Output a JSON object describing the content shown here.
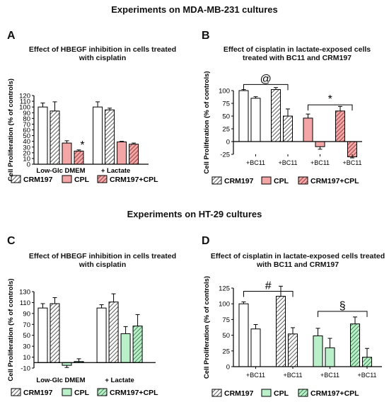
{
  "sections": {
    "top_title": "Experiments on MDA-MB-231 cultures",
    "bottom_title": "Experiments on HT-29 cultures"
  },
  "colors": {
    "white_bar": "#ffffff",
    "hatched_bar": "#ffffff",
    "pink": "#f4a6a6",
    "green": "#b9f0c9",
    "line": "#000000"
  },
  "chart_data": [
    {
      "panel": "A",
      "type": "bar",
      "title": "Effect of HBEGF inhibition in cells treated with cisplatin",
      "ylabel": "Cell Proliferation (% of controls)",
      "ylim": [
        0,
        120
      ],
      "yticks": [
        0,
        10,
        20,
        30,
        40,
        50,
        60,
        70,
        80,
        90,
        100,
        110,
        120
      ],
      "groups": [
        "Low-Glc DMEM",
        "+ Lactate"
      ],
      "series": [
        {
          "name": "",
          "fill": "white",
          "values": [
            100,
            100
          ],
          "err": [
            7,
            9
          ]
        },
        {
          "name": "CRM197",
          "fill": "hatch",
          "values": [
            93,
            95
          ],
          "err": [
            16,
            3
          ]
        },
        {
          "name": "CPL",
          "fill": "pink",
          "values": [
            37,
            39
          ],
          "err": [
            4,
            1
          ]
        },
        {
          "name": "CRM197+CPL",
          "fill": "pinkhatch",
          "values": [
            23,
            35
          ],
          "err": [
            2,
            2
          ]
        }
      ],
      "annotations": [
        {
          "symbol": "*",
          "group": 0,
          "series": 3
        }
      ]
    },
    {
      "panel": "B",
      "type": "bar",
      "title": "Effect of cisplatin in lactate-exposed cells treated with BC11 and CRM197",
      "ylabel": "Cell Proliferation (% of controls)",
      "ylim": [
        -25,
        100
      ],
      "yticks": [
        -25,
        0,
        25,
        50,
        75,
        100
      ],
      "x_labels": [
        "+BC11",
        "+BC11",
        "+BC11",
        "+BC11"
      ],
      "bars": [
        {
          "fill": "white",
          "value": 100,
          "err": 2
        },
        {
          "fill": "white",
          "value": 85,
          "err": 3
        },
        {
          "fill": "hatch",
          "value": 102,
          "err": 4
        },
        {
          "fill": "hatch",
          "value": 50,
          "err": 14
        },
        {
          "fill": "pink",
          "value": 46,
          "err": 8
        },
        {
          "fill": "pink",
          "value": -10,
          "err": 5
        },
        {
          "fill": "pinkhatch",
          "value": 60,
          "err": 9
        },
        {
          "fill": "pinkhatch",
          "value": -30,
          "err": 2
        }
      ],
      "brackets": [
        {
          "symbol": "@",
          "from": 0,
          "to": 3,
          "level": 112
        },
        {
          "symbol": "*",
          "from": 4,
          "to": 7,
          "level": 72
        }
      ],
      "legend": [
        "CRM197",
        "CPL",
        "CRM197+CPL"
      ]
    },
    {
      "panel": "C",
      "type": "bar",
      "title": "Effect of HBEGF inhibition in cells treated with cisplatin",
      "ylabel": "Cell Proliferation (% of controls)",
      "ylim": [
        -10,
        130
      ],
      "yticks": [
        -10,
        10,
        30,
        50,
        70,
        90,
        110,
        130
      ],
      "groups": [
        "Low-Glc DMEM",
        "+ Lactate"
      ],
      "series": [
        {
          "name": "",
          "fill": "white",
          "values": [
            100,
            100
          ],
          "err": [
            8,
            6
          ]
        },
        {
          "name": "CRM197",
          "fill": "hatch",
          "values": [
            108,
            111
          ],
          "err": [
            11,
            15
          ]
        },
        {
          "name": "CPL",
          "fill": "green",
          "values": [
            -5,
            53
          ],
          "err": [
            4,
            13
          ]
        },
        {
          "name": "CRM197+CPL",
          "fill": "greenhatch",
          "values": [
            2,
            67
          ],
          "err": [
            5,
            21
          ]
        }
      ]
    },
    {
      "panel": "D",
      "type": "bar",
      "title": "Effect of cisplatin in lactate-exposed cells treated with BC11 and CRM197",
      "ylabel": "Cell Proliferation (% of controls)",
      "ylim": [
        0,
        125
      ],
      "yticks": [
        0,
        25,
        50,
        75,
        100,
        125
      ],
      "x_labels": [
        "+BC11",
        "+BC11",
        "+BC11",
        "+BC11"
      ],
      "bars": [
        {
          "fill": "white",
          "value": 100,
          "err": 3
        },
        {
          "fill": "white",
          "value": 60,
          "err": 7
        },
        {
          "fill": "hatch",
          "value": 112,
          "err": 16
        },
        {
          "fill": "hatch",
          "value": 52,
          "err": 10
        },
        {
          "fill": "green",
          "value": 49,
          "err": 12
        },
        {
          "fill": "green",
          "value": 30,
          "err": 15
        },
        {
          "fill": "greenhatch",
          "value": 68,
          "err": 11
        },
        {
          "fill": "greenhatch",
          "value": 15,
          "err": 14
        }
      ],
      "brackets": [
        {
          "symbol": "#",
          "from": 0,
          "to": 3,
          "level": 120
        },
        {
          "symbol": "§",
          "from": 4,
          "to": 7,
          "level": 88
        }
      ],
      "legend": [
        "CRM197",
        "CPL",
        "CRM197+CPL"
      ]
    }
  ]
}
